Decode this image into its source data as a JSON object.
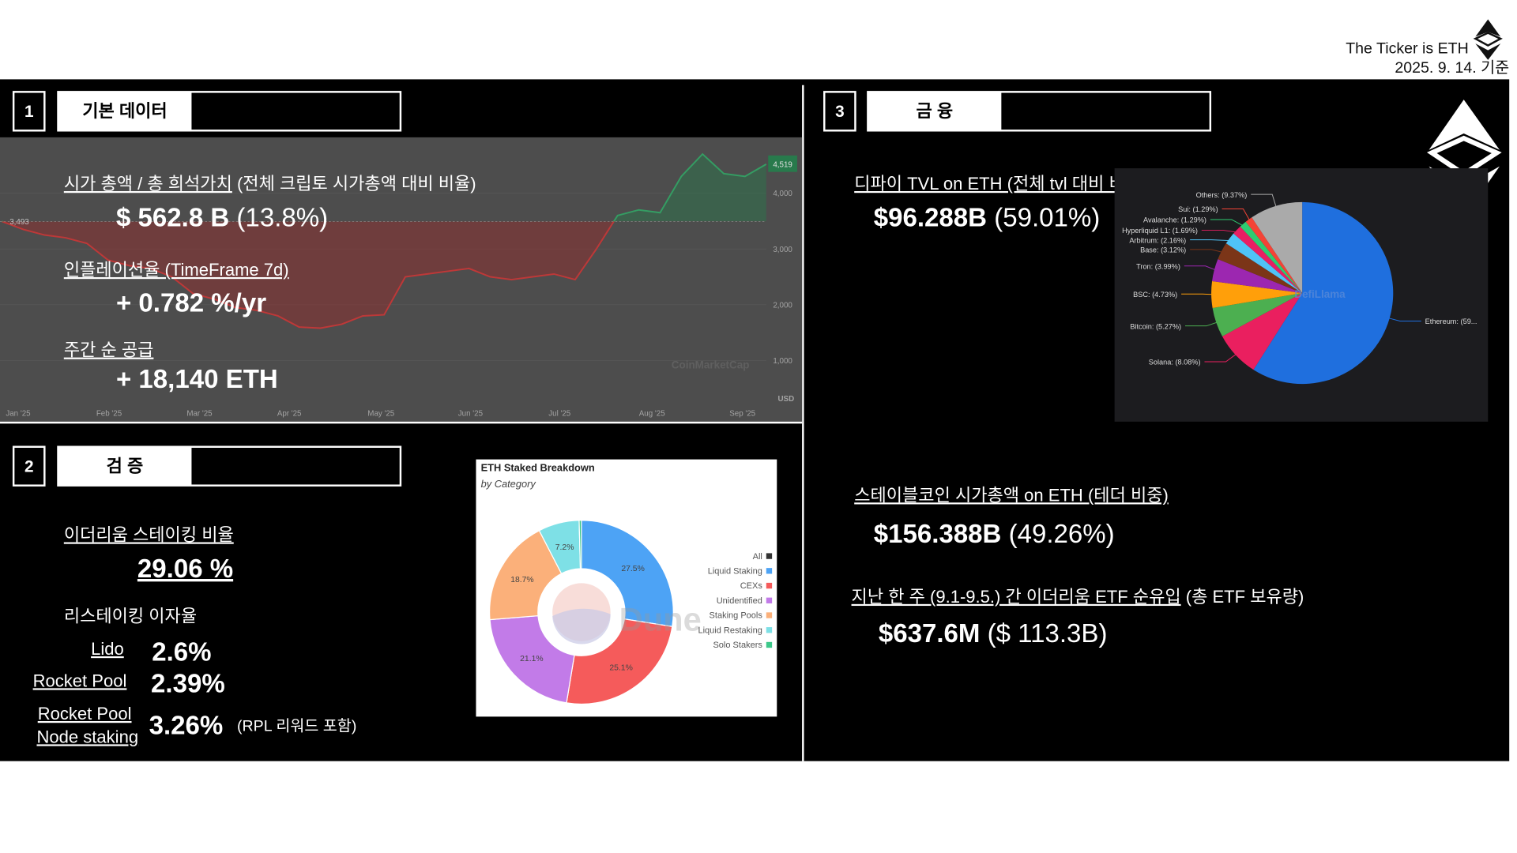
{
  "header": {
    "title": "The Ticker is ETH",
    "date": "2025. 9. 14. 기준"
  },
  "section1": {
    "number": "1",
    "title": "기본 데이터",
    "market_cap_label": "시가 총액 / 총 희석가치",
    "market_cap_note": " (전체 크립토 시가총액 대비 비율)",
    "market_cap_value": "$ 562.8 B",
    "market_cap_pct": " (13.8%)",
    "inflation_label": "인플레이션율 (TimeFrame 7d)",
    "inflation_value": "+ 0.782 %/yr",
    "supply_label": "주간 순 공급",
    "supply_value": "+ 18,140 ETH",
    "price_chart": {
      "type": "line",
      "x_labels": [
        "Jan '25",
        "Feb '25",
        "Mar '25",
        "Apr '25",
        "May '25",
        "Jun '25",
        "Jul '25",
        "Aug '25",
        "Sep '25"
      ],
      "values": [
        3493,
        3350,
        3250,
        3200,
        3100,
        2800,
        2700,
        2650,
        2500,
        2200,
        2100,
        1950,
        1900,
        1800,
        1600,
        1580,
        1650,
        1800,
        1820,
        2500,
        2550,
        2600,
        2650,
        2500,
        2450,
        2500,
        2550,
        2450,
        3000,
        3600,
        3700,
        3650,
        4300,
        4700,
        4350,
        4300,
        4519
      ],
      "value_labels": [
        "3,493",
        null,
        null,
        null,
        null,
        null,
        null,
        null,
        null,
        null,
        null,
        null,
        null,
        null,
        null,
        null,
        null,
        null,
        null,
        null,
        null,
        null,
        null,
        null,
        null,
        null,
        null,
        null,
        null,
        null,
        null,
        null,
        null,
        null,
        null,
        null,
        "4,519"
      ],
      "ylim": [
        0,
        5000
      ],
      "yticks": [
        {
          "value": 1000,
          "label": "1,000"
        },
        {
          "value": 2000,
          "label": "2,000"
        },
        {
          "value": 3000,
          "label": "3,000"
        },
        {
          "value": 4000,
          "label": "4,000"
        }
      ],
      "unit": "USD",
      "watermark": "CoinMarketCap"
    }
  },
  "section2": {
    "number": "2",
    "title": "검 증",
    "staking_label": "이더리움 스테이킹 비율",
    "staking_value": "29.06 %",
    "restaking_title": "리스테이킹 이자율",
    "rates": [
      {
        "name": "Lido",
        "rate": "2.6%"
      },
      {
        "name": "Rocket Pool",
        "rate": "2.39%"
      },
      {
        "name": "Rocket Pool",
        "name_line2": "Node staking",
        "rate": "3.26%",
        "note": "(RPL 리워드 포함)"
      }
    ],
    "staked_chart": {
      "type": "donut",
      "title": "ETH Staked Breakdown",
      "subtitle": "by Category",
      "watermark": "Dune",
      "legend_all": {
        "name": "All",
        "color": "#333333"
      },
      "series": [
        {
          "name": "Liquid Staking",
          "color": "#4da3f5",
          "value": 27.5,
          "value_label": "27.5%"
        },
        {
          "name": "CEXs",
          "color": "#f55b5b",
          "value": 25.1,
          "value_label": "25.1%"
        },
        {
          "name": "Unidentified",
          "color": "#c27be8",
          "value": 21.1,
          "value_label": "21.1%"
        },
        {
          "name": "Staking Pools",
          "color": "#fbb07a",
          "value": 18.7,
          "value_label": "18.7%"
        },
        {
          "name": "Liquid Restaking",
          "color": "#7ee0e6",
          "value": 7.2,
          "value_label": "7.2%"
        },
        {
          "name": "Solo Stakers",
          "color": "#3dc88a",
          "value": 0.4
        }
      ]
    }
  },
  "section3": {
    "number": "3",
    "title": "금 융",
    "defi_label": "디파이 TVL on ETH (전체 tvl 대비 비중)",
    "defi_value": "$96.288B",
    "defi_pct": " (59.01%)",
    "stable_label": "스테이블코인 시가총액 on ETH (테더 비중)",
    "stable_value": "$156.388B",
    "stable_pct": " (49.26%)",
    "etf_label": "지난 한 주 (9.1-9.5.) 간 이더리움 ETF 순유입",
    "etf_note": " (총 ETF 보유량)",
    "etf_value": "$637.6M",
    "etf_pct": " ($ 113.3B)",
    "tvl_chart": {
      "type": "pie",
      "watermark": "DefiLlama",
      "slices": [
        {
          "label": "Ethereum: (59...",
          "value": 59.01,
          "color": "#1f6fde"
        },
        {
          "label": "Solana: (8.08%)",
          "value": 8.08,
          "color": "#ea1f5f"
        },
        {
          "label": "Bitcoin: (5.27%)",
          "value": 5.27,
          "color": "#4caf50"
        },
        {
          "label": "BSC: (4.73%)",
          "value": 4.73,
          "color": "#ff9f0a"
        },
        {
          "label": "Tron: (3.99%)",
          "value": 3.99,
          "color": "#9c27b0"
        },
        {
          "label": "Base: (3.12%)",
          "value": 3.12,
          "color": "#7b3518"
        },
        {
          "label": "Arbitrum: (2.16%)",
          "value": 2.16,
          "color": "#4fc3f7"
        },
        {
          "label": "Hyperliquid L1: (1.69%)",
          "value": 1.69,
          "color": "#e91e63"
        },
        {
          "label": "Avalanche: (1.29%)",
          "value": 1.29,
          "color": "#2ecc71"
        },
        {
          "label": "Sui: (1.29%)",
          "value": 1.29,
          "color": "#f44336"
        },
        {
          "label": "Others: (9.37%)",
          "value": 9.37,
          "color": "#aaaaaa"
        }
      ]
    }
  }
}
